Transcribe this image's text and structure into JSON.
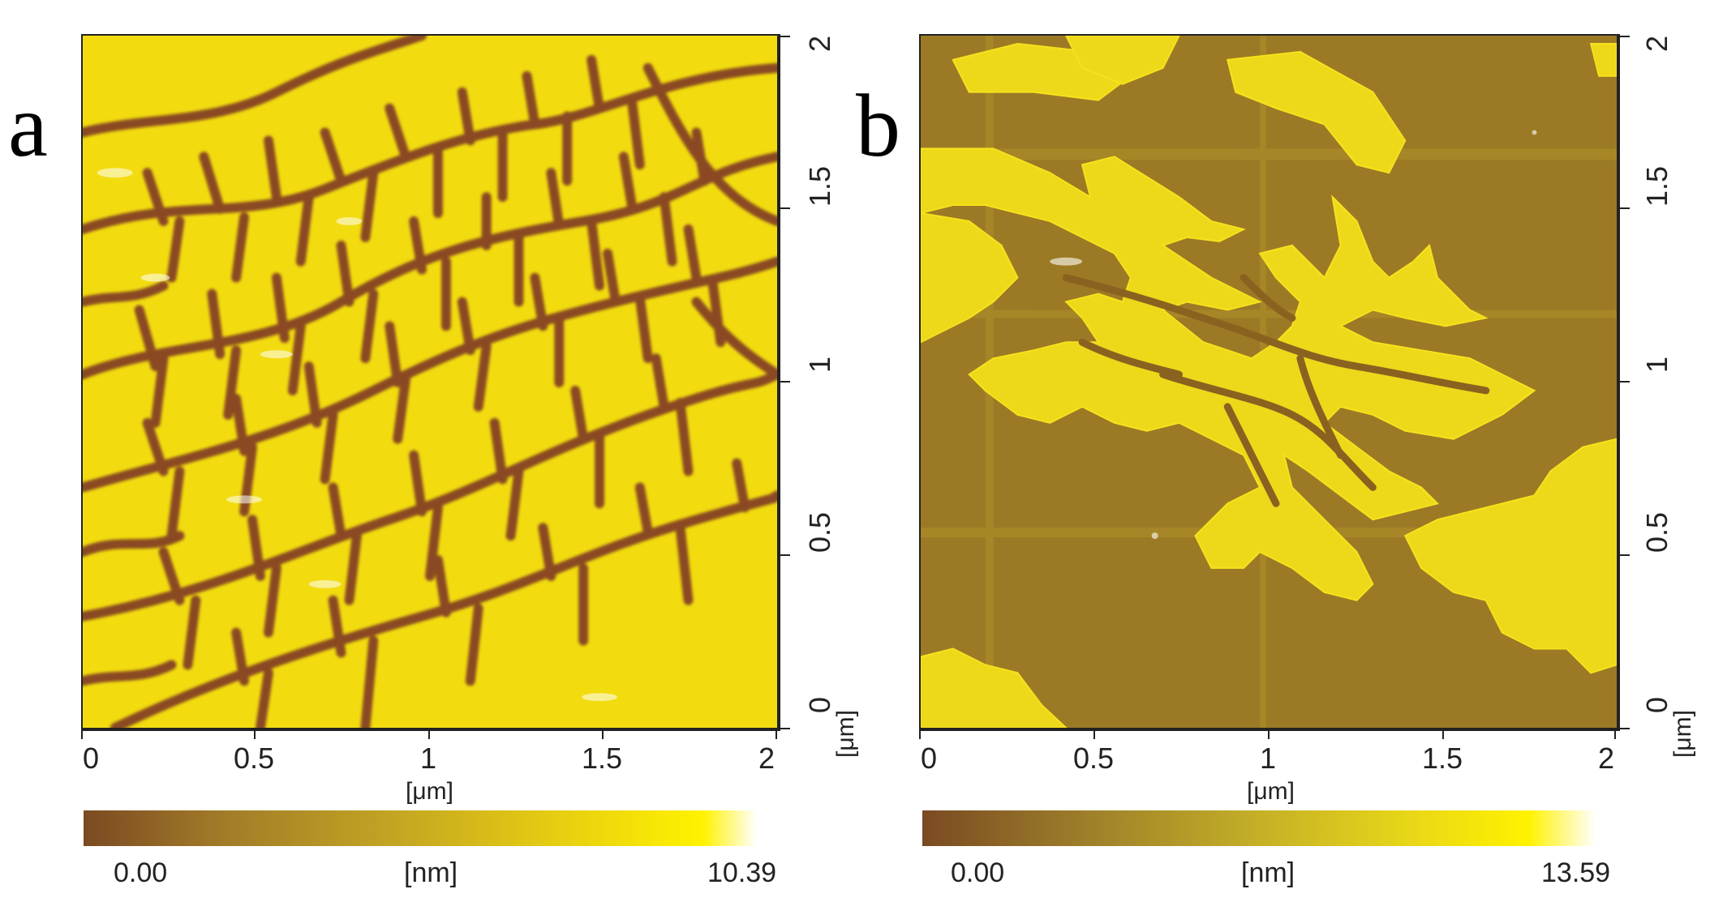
{
  "panels": [
    {
      "letter": "a",
      "x_ticks": [
        "0",
        "0.5",
        "1",
        "1.5",
        "2"
      ],
      "y_ticks": [
        "0",
        "0.5",
        "1",
        "1.5",
        "2"
      ],
      "x_unit": "[μm]",
      "y_unit": "[μm]",
      "colorbar": {
        "min": "0.00",
        "unit": "[nm]",
        "max": "10.39"
      }
    },
    {
      "letter": "b",
      "x_ticks": [
        "0",
        "0.5",
        "1",
        "1.5",
        "2"
      ],
      "y_ticks": [
        "0",
        "0.5",
        "1",
        "1.5",
        "2"
      ],
      "x_unit": "[μm]",
      "y_unit": "[μm]",
      "colorbar": {
        "min": "0.00",
        "unit": "[nm]",
        "max": "13.59"
      }
    }
  ],
  "colors": {
    "height_low": "#7a4a22",
    "height_mid": "#b8a020",
    "height_high": "#fff200"
  }
}
